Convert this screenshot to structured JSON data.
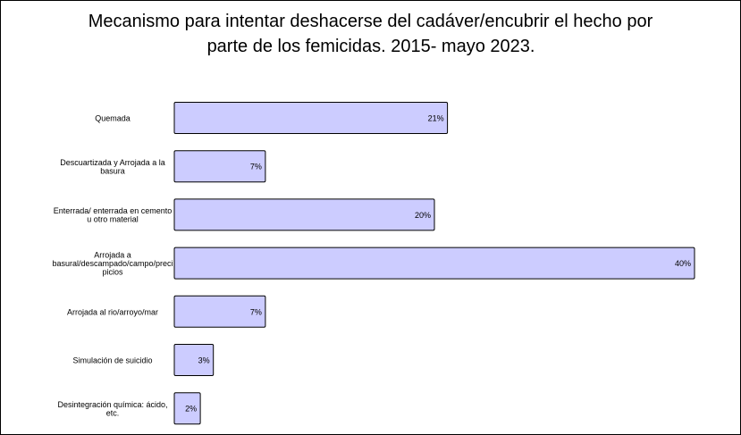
{
  "chart_data": {
    "type": "bar",
    "orientation": "horizontal",
    "title_line1": "Mecanismo para intentar deshacerse del cadáver/encubrir el hecho por",
    "title_line2": "parte de los femicidas. 2015- mayo 2023.",
    "categories": [
      [
        "Quemada"
      ],
      [
        "Descuartizada y Arrojada a la",
        "basura"
      ],
      [
        "Enterrada/ enterrada en cemento",
        "u otro material"
      ],
      [
        "Arrojada a",
        "basural/descampado/campo/preci",
        "picios"
      ],
      [
        "Arrojada al rio/arroyo/mar"
      ],
      [
        "Simulación de suicidio"
      ],
      [
        "Desintegración química: ácido,",
        "etc."
      ]
    ],
    "values": [
      21,
      7,
      20,
      40,
      7,
      3,
      2
    ],
    "value_labels": [
      "21%",
      "7%",
      "20%",
      "40%",
      "7%",
      "3%",
      "2%"
    ],
    "unit": "%",
    "xlim": [
      0,
      40
    ],
    "grid": false,
    "legend": "none",
    "bar_color": "#ccccff",
    "bar_border_color": "#000000"
  }
}
